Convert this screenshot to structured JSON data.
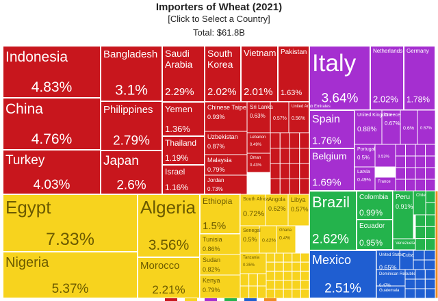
{
  "header": {
    "title": "Importers of Wheat (2021)",
    "subtitle": "[Click to Select a Country]",
    "total": "Total: $61.8B"
  },
  "colors": {
    "asia": "#c8161d",
    "africa": "#f7d31e",
    "europe": "#a52fd0",
    "south_america": "#24b34c",
    "north_america": "#1f5ed1",
    "oceania": "#f08a24",
    "text_light": "#ffffff",
    "text_dark": "#6b5a00"
  },
  "chart_data": {
    "type": "treemap",
    "title": "Importers of Wheat (2021)",
    "subtitle": "[Click to Select a Country]",
    "total_label": "Total: $61.8B",
    "unit": "% of world imports",
    "items": [
      {
        "name": "Indonesia",
        "value": 4.83,
        "value_label": "4.83%",
        "region": "asia"
      },
      {
        "name": "China",
        "value": 4.76,
        "value_label": "4.76%",
        "region": "asia"
      },
      {
        "name": "Turkey",
        "value": 4.03,
        "value_label": "4.03%",
        "region": "asia"
      },
      {
        "name": "Bangladesh",
        "value": 3.1,
        "value_label": "3.1%",
        "region": "asia"
      },
      {
        "name": "Philippines",
        "value": 2.79,
        "value_label": "2.79%",
        "region": "asia"
      },
      {
        "name": "Japan",
        "value": 2.6,
        "value_label": "2.6%",
        "region": "asia"
      },
      {
        "name": "Saudi Arabia",
        "value": 2.29,
        "value_label": "2.29%",
        "region": "asia"
      },
      {
        "name": "South Korea",
        "value": 2.02,
        "value_label": "2.02%",
        "region": "asia"
      },
      {
        "name": "Vietnam",
        "value": 2.01,
        "value_label": "2.01%",
        "region": "asia"
      },
      {
        "name": "Pakistan",
        "value": 1.63,
        "value_label": "1.63%",
        "region": "asia"
      },
      {
        "name": "Yemen",
        "value": 1.36,
        "value_label": "1.36%",
        "region": "asia"
      },
      {
        "name": "Thailand",
        "value": 1.19,
        "value_label": "1.19%",
        "region": "asia"
      },
      {
        "name": "Israel",
        "value": 1.16,
        "value_label": "1.16%",
        "region": "asia"
      },
      {
        "name": "Chinese Taipei",
        "value": 0.93,
        "value_label": "0.93%",
        "region": "asia"
      },
      {
        "name": "Uzbekistan",
        "value": 0.87,
        "value_label": "0.87%",
        "region": "asia"
      },
      {
        "name": "Malaysia",
        "value": 0.79,
        "value_label": "0.79%",
        "region": "asia"
      },
      {
        "name": "Jordan",
        "value": 0.73,
        "value_label": "0.73%",
        "region": "asia"
      },
      {
        "name": "Sri Lanka",
        "value": 0.63,
        "value_label": "0.63%",
        "region": "asia"
      },
      {
        "name": "",
        "value": 0.57,
        "value_label": "0.57%",
        "region": "asia"
      },
      {
        "name": "United Arab Emirates",
        "value": 0.56,
        "value_label": "0.56%",
        "region": "asia"
      },
      {
        "name": "Lebanon",
        "value": 0.49,
        "value_label": "0.49%",
        "region": "asia"
      },
      {
        "name": "Oman",
        "value": 0.43,
        "value_label": "0.43%",
        "region": "asia"
      },
      {
        "name": "Egypt",
        "value": 7.33,
        "value_label": "7.33%",
        "region": "africa"
      },
      {
        "name": "Nigeria",
        "value": 5.37,
        "value_label": "5.37%",
        "region": "africa"
      },
      {
        "name": "Algeria",
        "value": 3.56,
        "value_label": "3.56%",
        "region": "africa"
      },
      {
        "name": "Morocco",
        "value": 2.21,
        "value_label": "2.21%",
        "region": "africa"
      },
      {
        "name": "Ethiopia",
        "value": 1.5,
        "value_label": "1.5%",
        "region": "africa"
      },
      {
        "name": "Tunisia",
        "value": 0.86,
        "value_label": "0.86%",
        "region": "africa"
      },
      {
        "name": "Sudan",
        "value": 0.82,
        "value_label": "0.82%",
        "region": "africa"
      },
      {
        "name": "Kenya",
        "value": 0.79,
        "value_label": "0.79%",
        "region": "africa"
      },
      {
        "name": "South Africa",
        "value": 0.72,
        "value_label": "0.72%",
        "region": "africa"
      },
      {
        "name": "Angola",
        "value": 0.62,
        "value_label": "0.62%",
        "region": "africa"
      },
      {
        "name": "Libya",
        "value": 0.57,
        "value_label": "0.57%",
        "region": "africa"
      },
      {
        "name": "Senegal",
        "value": 0.5,
        "value_label": "0.5%",
        "region": "africa"
      },
      {
        "name": "",
        "value": 0.42,
        "value_label": "0.42%",
        "region": "africa"
      },
      {
        "name": "Ghana",
        "value": 0.4,
        "value_label": "0.4%",
        "region": "africa"
      },
      {
        "name": "Tanzania",
        "value": 0.35,
        "value_label": "0.35%",
        "region": "africa"
      },
      {
        "name": "Italy",
        "value": 3.64,
        "value_label": "3.64%",
        "region": "europe"
      },
      {
        "name": "Netherlands",
        "value": 2.02,
        "value_label": "2.02%",
        "region": "europe"
      },
      {
        "name": "Germany",
        "value": 1.78,
        "value_label": "1.78%",
        "region": "europe"
      },
      {
        "name": "Spain",
        "value": 1.76,
        "value_label": "1.76%",
        "region": "europe"
      },
      {
        "name": "Belgium",
        "value": 1.69,
        "value_label": "1.69%",
        "region": "europe"
      },
      {
        "name": "United Kingdom",
        "value": 0.88,
        "value_label": "0.88%",
        "region": "europe"
      },
      {
        "name": "Greece",
        "value": 0.67,
        "value_label": "0.67%",
        "region": "europe"
      },
      {
        "name": "",
        "value": 0.6,
        "value_label": "0.6%",
        "region": "europe"
      },
      {
        "name": "",
        "value": 0.57,
        "value_label": "0.57%",
        "region": "europe"
      },
      {
        "name": "Portugal",
        "value": 0.5,
        "value_label": "0.5%",
        "region": "europe"
      },
      {
        "name": "",
        "value": 0.53,
        "value_label": "0.53%",
        "region": "europe"
      },
      {
        "name": "Latvia",
        "value": 0.49,
        "value_label": "0.49%",
        "region": "europe"
      },
      {
        "name": "France",
        "value": 0.0,
        "value_label": "",
        "region": "europe"
      },
      {
        "name": "Brazil",
        "value": 2.62,
        "value_label": "2.62%",
        "region": "south_america"
      },
      {
        "name": "Colombia",
        "value": 0.99,
        "value_label": "0.99%",
        "region": "south_america"
      },
      {
        "name": "Ecuador",
        "value": 0.95,
        "value_label": "0.95%",
        "region": "south_america"
      },
      {
        "name": "Peru",
        "value": 0.91,
        "value_label": "0.91%",
        "region": "south_america"
      },
      {
        "name": "Chile",
        "value": 0.0,
        "value_label": "",
        "region": "south_america"
      },
      {
        "name": "Venezuela",
        "value": 0.0,
        "value_label": "",
        "region": "south_america"
      },
      {
        "name": "Mexico",
        "value": 2.51,
        "value_label": "2.51%",
        "region": "north_america"
      },
      {
        "name": "United States",
        "value": 0.65,
        "value_label": "0.65%",
        "region": "north_america"
      },
      {
        "name": "Cuba",
        "value": 0.0,
        "value_label": "",
        "region": "north_america"
      },
      {
        "name": "Dominican Republic",
        "value": 0.47,
        "value_label": "0.47%",
        "region": "north_america"
      },
      {
        "name": "Guatemala",
        "value": 0.0,
        "value_label": "",
        "region": "north_america"
      }
    ]
  }
}
